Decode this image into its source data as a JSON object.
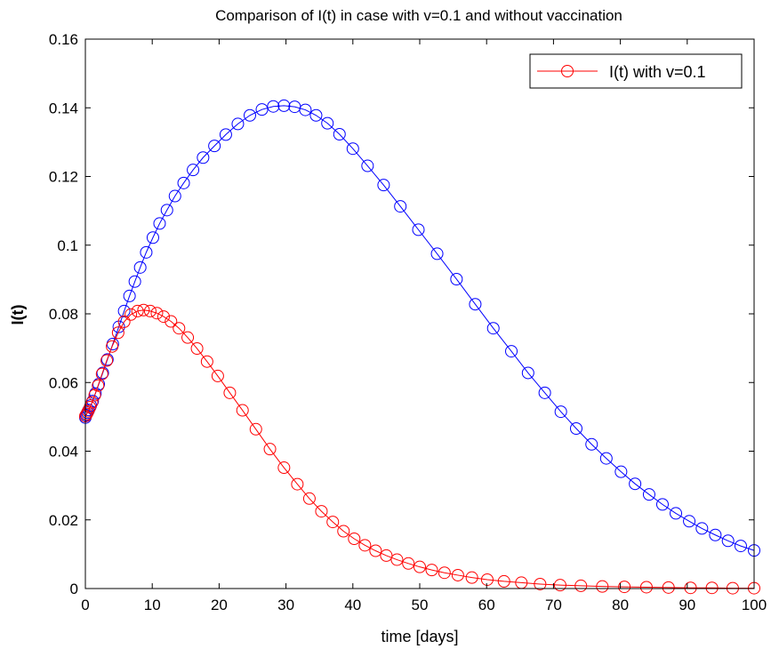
{
  "chart_data": {
    "type": "line",
    "title": "Comparison of I(t) in case with v=0.1 and without vaccination",
    "xlabel": "time [days]",
    "ylabel": "I(t)",
    "xlim": [
      0,
      100
    ],
    "ylim": [
      0,
      0.16
    ],
    "xticks": [
      0,
      10,
      20,
      30,
      40,
      50,
      60,
      70,
      80,
      90,
      100
    ],
    "yticks": [
      0,
      0.02,
      0.04,
      0.06,
      0.08,
      0.1,
      0.12,
      0.14,
      0.16
    ],
    "xtick_labels": [
      "0",
      "10",
      "20",
      "30",
      "40",
      "50",
      "60",
      "70",
      "80",
      "90",
      "100"
    ],
    "ytick_labels": [
      "0",
      "0.02",
      "0.04",
      "0.06",
      "0.08",
      "0.1",
      "0.12",
      "0.14",
      "0.16"
    ],
    "grid": false,
    "legend_position": "top-right",
    "marker": "circle",
    "series": [
      {
        "name": "",
        "color": "#0000ff",
        "x": [
          0,
          0.1,
          0.3,
          0.5,
          0.8,
          1.1,
          1.5,
          2,
          2.6,
          3.3,
          4.1,
          5,
          5.8,
          6.6,
          7.4,
          8.2,
          9.1,
          10.1,
          11.1,
          12.2,
          13.4,
          14.7,
          16.1,
          17.6,
          19.3,
          21,
          22.8,
          24.6,
          26.4,
          28.1,
          29.7,
          31.3,
          32.9,
          34.5,
          36.2,
          38,
          40,
          42.2,
          44.6,
          47.1,
          49.8,
          52.6,
          55.5,
          58.3,
          61,
          63.7,
          66.2,
          68.7,
          71.1,
          73.4,
          75.7,
          77.9,
          80.1,
          82.2,
          84.3,
          86.3,
          88.3,
          90.3,
          92.2,
          94.2,
          96.1,
          98,
          100
        ],
        "y": [
          0.0498,
          0.0505,
          0.0512,
          0.052,
          0.0533,
          0.0546,
          0.0568,
          0.0595,
          0.0628,
          0.0667,
          0.0712,
          0.0762,
          0.0808,
          0.0852,
          0.0894,
          0.0935,
          0.0979,
          0.1022,
          0.1063,
          0.1102,
          0.1143,
          0.1181,
          0.1219,
          0.1255,
          0.1289,
          0.1322,
          0.1353,
          0.1378,
          0.1395,
          0.1404,
          0.1406,
          0.1403,
          0.1394,
          0.1378,
          0.1355,
          0.1323,
          0.1281,
          0.1231,
          0.1175,
          0.1113,
          0.1045,
          0.0975,
          0.0901,
          0.0828,
          0.0758,
          0.0691,
          0.0628,
          0.057,
          0.0515,
          0.0466,
          0.042,
          0.0379,
          0.034,
          0.0305,
          0.0274,
          0.0245,
          0.0219,
          0.0196,
          0.0175,
          0.0156,
          0.0139,
          0.0124,
          0.0111
        ]
      },
      {
        "name": "I(t) with v=0.1",
        "color": "#ff0000",
        "x": [
          0,
          0.2,
          0.4,
          0.7,
          1,
          1.4,
          1.9,
          2.5,
          3.2,
          4,
          4.9,
          5.8,
          6.8,
          7.8,
          8.7,
          9.7,
          10.7,
          11.7,
          12.8,
          14,
          15.3,
          16.7,
          18.2,
          19.8,
          21.6,
          23.5,
          25.5,
          27.6,
          29.7,
          31.7,
          33.5,
          35.3,
          37,
          38.6,
          40.2,
          41.8,
          43.4,
          45,
          46.6,
          48.3,
          50,
          51.8,
          53.7,
          55.7,
          57.8,
          60.1,
          62.6,
          65.2,
          68,
          71,
          74.1,
          77.3,
          80.6,
          83.9,
          87.2,
          90.5,
          93.7,
          96.8,
          100
        ],
        "y": [
          0.0502,
          0.0508,
          0.0516,
          0.0528,
          0.0542,
          0.0563,
          0.0591,
          0.0625,
          0.0664,
          0.0705,
          0.0745,
          0.0777,
          0.0798,
          0.0808,
          0.0811,
          0.0808,
          0.0802,
          0.0792,
          0.0778,
          0.0758,
          0.0731,
          0.0699,
          0.0661,
          0.0619,
          0.057,
          0.0519,
          0.0464,
          0.0406,
          0.0352,
          0.0304,
          0.0262,
          0.0225,
          0.0194,
          0.0167,
          0.0145,
          0.0126,
          0.011,
          0.0096,
          0.0084,
          0.0073,
          0.0063,
          0.0054,
          0.0046,
          0.0039,
          0.0032,
          0.0026,
          0.0021,
          0.0017,
          0.0013,
          0.001,
          0.0008,
          0.0006,
          0.0005,
          0.0004,
          0.0003,
          0.0002,
          0.0002,
          0.0001,
          0.0001
        ]
      }
    ]
  }
}
